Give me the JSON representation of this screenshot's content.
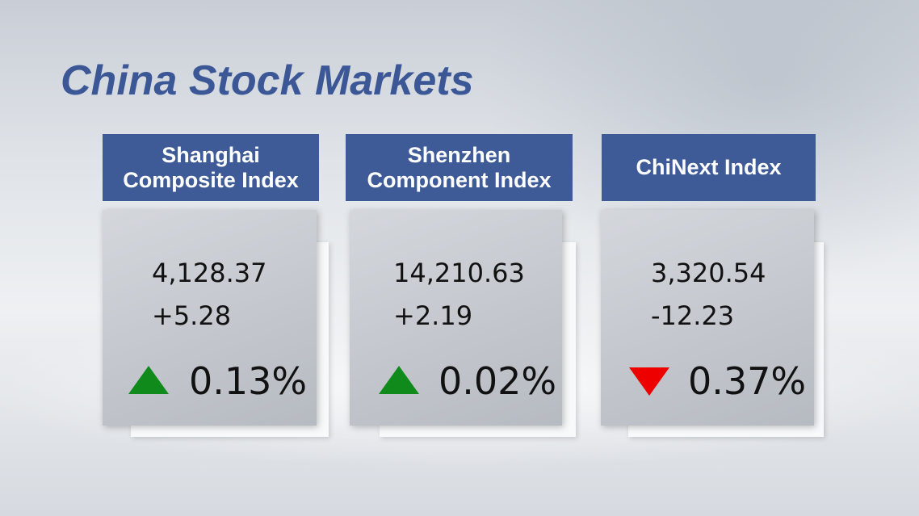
{
  "title": "China Stock Markets",
  "colors": {
    "header": "#3e5b98",
    "up": "#118a1c",
    "down": "#ee0000"
  },
  "indices": [
    {
      "name_line1": "Shanghai",
      "name_line2": "Composite Index",
      "value": "4,128.37",
      "change": "+5.28",
      "direction": "up",
      "direction_icon": "triangle-up-icon",
      "percent": "0.13%"
    },
    {
      "name_line1": "Shenzhen",
      "name_line2": "Component Index",
      "value": "14,210.63",
      "change": "+2.19",
      "direction": "up",
      "direction_icon": "triangle-up-icon",
      "percent": "0.02%"
    },
    {
      "name_line1": "ChiNext Index",
      "name_line2": "",
      "value": "3,320.54",
      "change": "-12.23",
      "direction": "down",
      "direction_icon": "triangle-down-icon",
      "percent": "0.37%"
    }
  ]
}
